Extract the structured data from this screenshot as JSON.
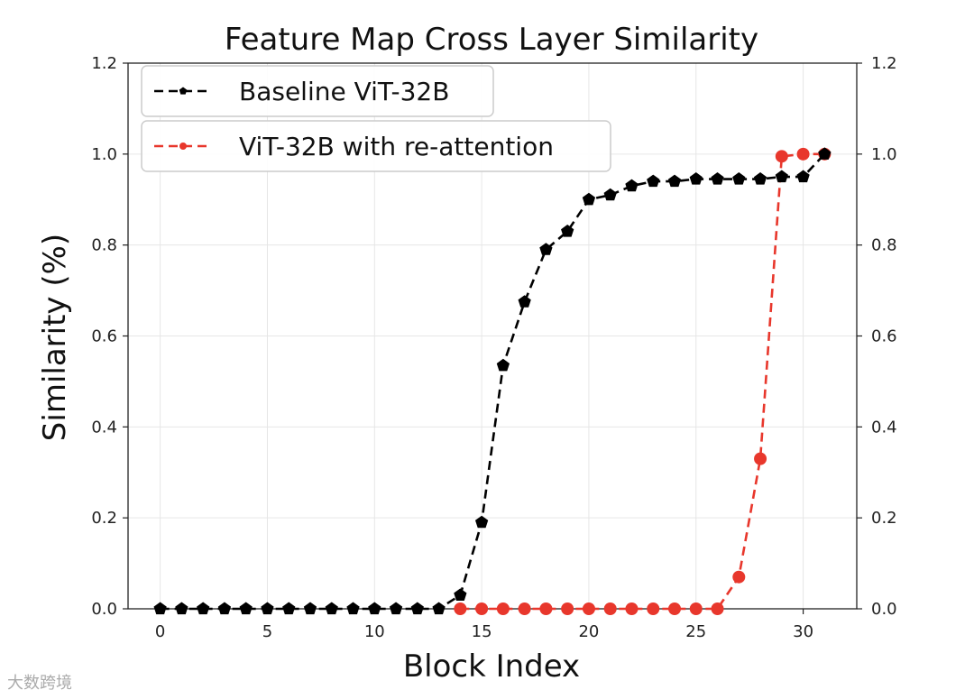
{
  "chart_data": {
    "type": "line",
    "title": "Feature Map Cross Layer Similarity",
    "xlabel": "Block Index",
    "ylabel": "Similarity (%)",
    "xlim": [
      -1.5,
      32.5
    ],
    "ylim": [
      0.0,
      1.2
    ],
    "xticks": [
      0,
      5,
      10,
      15,
      20,
      25,
      30
    ],
    "yticks": [
      0.0,
      0.2,
      0.4,
      0.6,
      0.8,
      1.0,
      1.2
    ],
    "xtick_labels": [
      "0",
      "5",
      "10",
      "15",
      "20",
      "25",
      "30"
    ],
    "ytick_labels": [
      "0.0",
      "0.2",
      "0.4",
      "0.6",
      "0.8",
      "1.0",
      "1.2"
    ],
    "grid": true,
    "legend_position": "top-left",
    "x": [
      0,
      1,
      2,
      3,
      4,
      5,
      6,
      7,
      8,
      9,
      10,
      11,
      12,
      13,
      14,
      15,
      16,
      17,
      18,
      19,
      20,
      21,
      22,
      23,
      24,
      25,
      26,
      27,
      28,
      29,
      30,
      31
    ],
    "series": [
      {
        "name": "Baseline ViT-32B",
        "color": "#000000",
        "marker": "pentagon",
        "values": [
          0,
          0,
          0,
          0,
          0,
          0,
          0,
          0,
          0,
          0,
          0,
          0,
          0,
          0,
          0.03,
          0.19,
          0.535,
          0.675,
          0.79,
          0.83,
          0.9,
          0.91,
          0.93,
          0.94,
          0.94,
          0.945,
          0.945,
          0.945,
          0.945,
          0.95,
          0.95,
          1.0
        ]
      },
      {
        "name": "ViT-32B with re-attention",
        "color": "#e8372c",
        "marker": "circle",
        "values": [
          null,
          null,
          null,
          null,
          null,
          null,
          null,
          null,
          null,
          null,
          null,
          null,
          null,
          null,
          0,
          0,
          0,
          0,
          0,
          0,
          0,
          0,
          0,
          0,
          0,
          0,
          0,
          0.07,
          0.33,
          0.995,
          1.0,
          1.0
        ]
      }
    ]
  },
  "watermark": "大数跨境"
}
